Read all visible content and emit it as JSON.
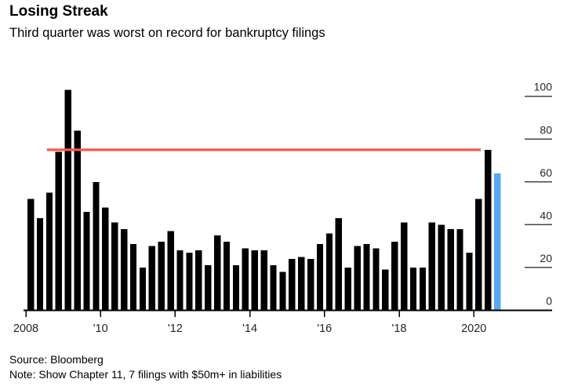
{
  "header": {
    "title": "Losing Streak",
    "subtitle": "Third quarter was worst on record for bankruptcy filings"
  },
  "footer": {
    "source": "Source: Bloomberg",
    "note": "Note: Show Chapter 11, 7 filings with $50m+ in liabilities"
  },
  "chart_data": {
    "type": "bar",
    "title": "Losing Streak",
    "subtitle": "Third quarter was worst on record for bankruptcy filings",
    "series_name": "Chapter 11, 7 filings with $50m+ in liabilities",
    "categories": [
      "2008 Q1",
      "2008 Q2",
      "2008 Q3",
      "2008 Q4",
      "2009 Q1",
      "2009 Q2",
      "2009 Q3",
      "2009 Q4",
      "2010 Q1",
      "2010 Q2",
      "2010 Q3",
      "2010 Q4",
      "2011 Q1",
      "2011 Q2",
      "2011 Q3",
      "2011 Q4",
      "2012 Q1",
      "2012 Q2",
      "2012 Q3",
      "2012 Q4",
      "2013 Q1",
      "2013 Q2",
      "2013 Q3",
      "2013 Q4",
      "2014 Q1",
      "2014 Q2",
      "2014 Q3",
      "2014 Q4",
      "2015 Q1",
      "2015 Q2",
      "2015 Q3",
      "2015 Q4",
      "2016 Q1",
      "2016 Q2",
      "2016 Q3",
      "2016 Q4",
      "2017 Q1",
      "2017 Q2",
      "2017 Q3",
      "2017 Q4",
      "2018 Q1",
      "2018 Q2",
      "2018 Q3",
      "2018 Q4",
      "2019 Q1",
      "2019 Q2",
      "2019 Q3",
      "2019 Q4",
      "2020 Q1",
      "2020 Q2",
      "2020 Q3"
    ],
    "values": [
      52,
      43,
      55,
      74,
      103,
      84,
      46,
      60,
      48,
      41,
      38,
      31,
      20,
      30,
      32,
      37,
      28,
      27,
      28,
      21,
      35,
      32,
      21,
      29,
      28,
      28,
      21,
      18,
      24,
      25,
      24,
      31,
      36,
      43,
      20,
      30,
      31,
      29,
      19,
      32,
      41,
      20,
      20,
      41,
      40,
      38,
      38,
      27,
      52,
      75,
      64
    ],
    "ylim": [
      0,
      103
    ],
    "yticks": [
      0,
      20,
      40,
      60,
      80,
      100
    ],
    "ytick_labels": [
      "0",
      "20",
      "40",
      "60",
      "80",
      "100"
    ],
    "xticks": [
      {
        "label": "2008",
        "index": 0
      },
      {
        "label": "'10",
        "index": 8
      },
      {
        "label": "'12",
        "index": 16
      },
      {
        "label": "'14",
        "index": 24
      },
      {
        "label": "'16",
        "index": 32
      },
      {
        "label": "'18",
        "index": 40
      },
      {
        "label": "2020",
        "index": 48
      }
    ],
    "reference_line": {
      "value": 75,
      "from_index": 2,
      "to_index": 49,
      "color": "#fa584a"
    },
    "highlight": {
      "index": 50,
      "category": "2020 Q3",
      "color": "#5aa7f2"
    },
    "colors": {
      "bar": "#000000",
      "axis": "#000000",
      "tick_label": "#262626",
      "grid_dash": "#454545"
    },
    "legend": "none",
    "grid": "right-edge tick dashes only"
  }
}
